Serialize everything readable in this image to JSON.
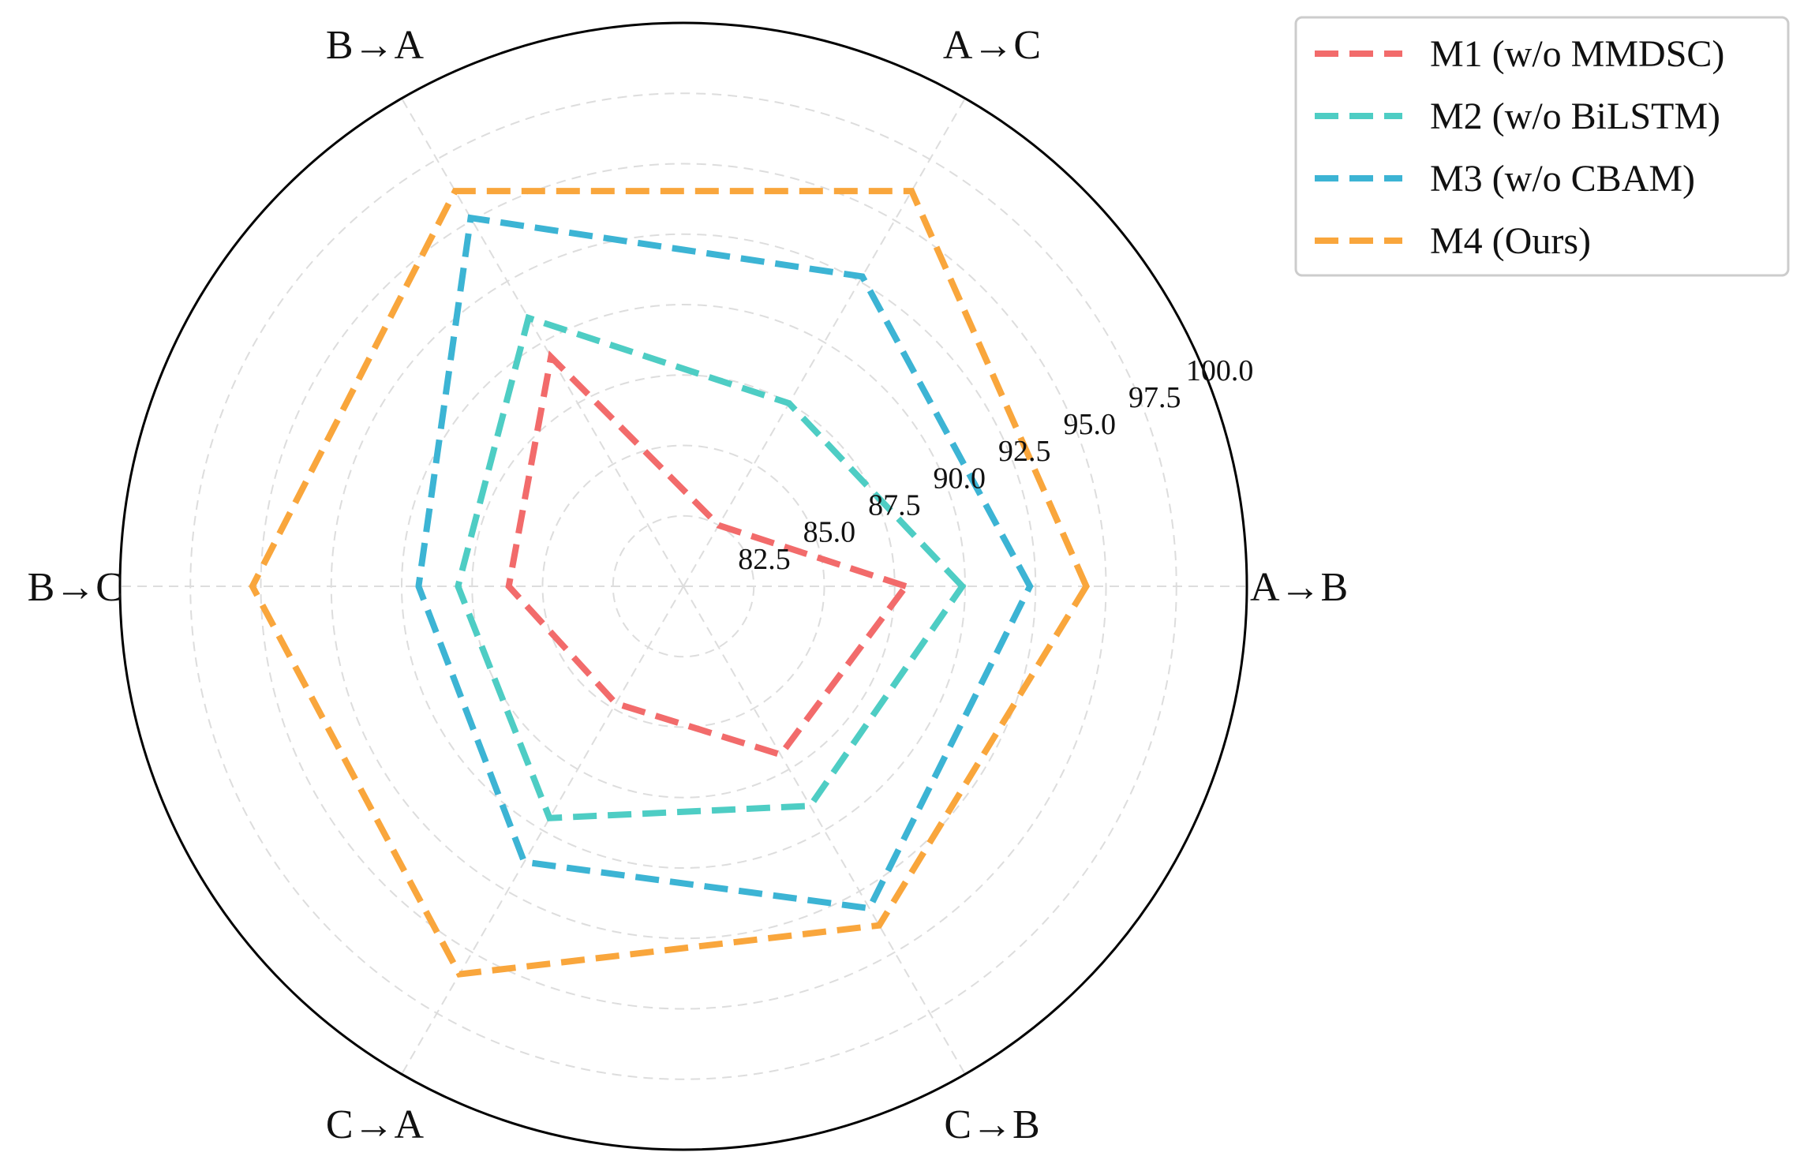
{
  "chart_data": {
    "type": "radar",
    "categories": [
      "A→B",
      "A→C",
      "B→A",
      "B→C",
      "C→A",
      "C→B"
    ],
    "radial_ticks": [
      "82.5",
      "85.0",
      "87.5",
      "90.0",
      "92.5",
      "95.0",
      "97.5",
      "100.0"
    ],
    "rlim": [
      80,
      100
    ],
    "grid": true,
    "legend_position": "top-right",
    "series": [
      {
        "name": "M1 (w/o MMDSC)",
        "color": "#f26b6b",
        "values": [
          87.9,
          82.5,
          89.4,
          86.2,
          84.8,
          86.9
        ]
      },
      {
        "name": "M2 (w/o BiLSTM)",
        "color": "#4ecdc4",
        "values": [
          89.9,
          87.5,
          91.0,
          88.0,
          89.5,
          89.0
        ]
      },
      {
        "name": "M3 (w/o CBAM)",
        "color": "#3cb4d4",
        "values": [
          92.3,
          92.7,
          95.1,
          89.4,
          91.3,
          93.2
        ]
      },
      {
        "name": "M4 (Ours)",
        "color": "#f9a63c",
        "values": [
          94.3,
          96.2,
          96.2,
          95.3,
          95.9,
          93.9
        ]
      }
    ]
  }
}
